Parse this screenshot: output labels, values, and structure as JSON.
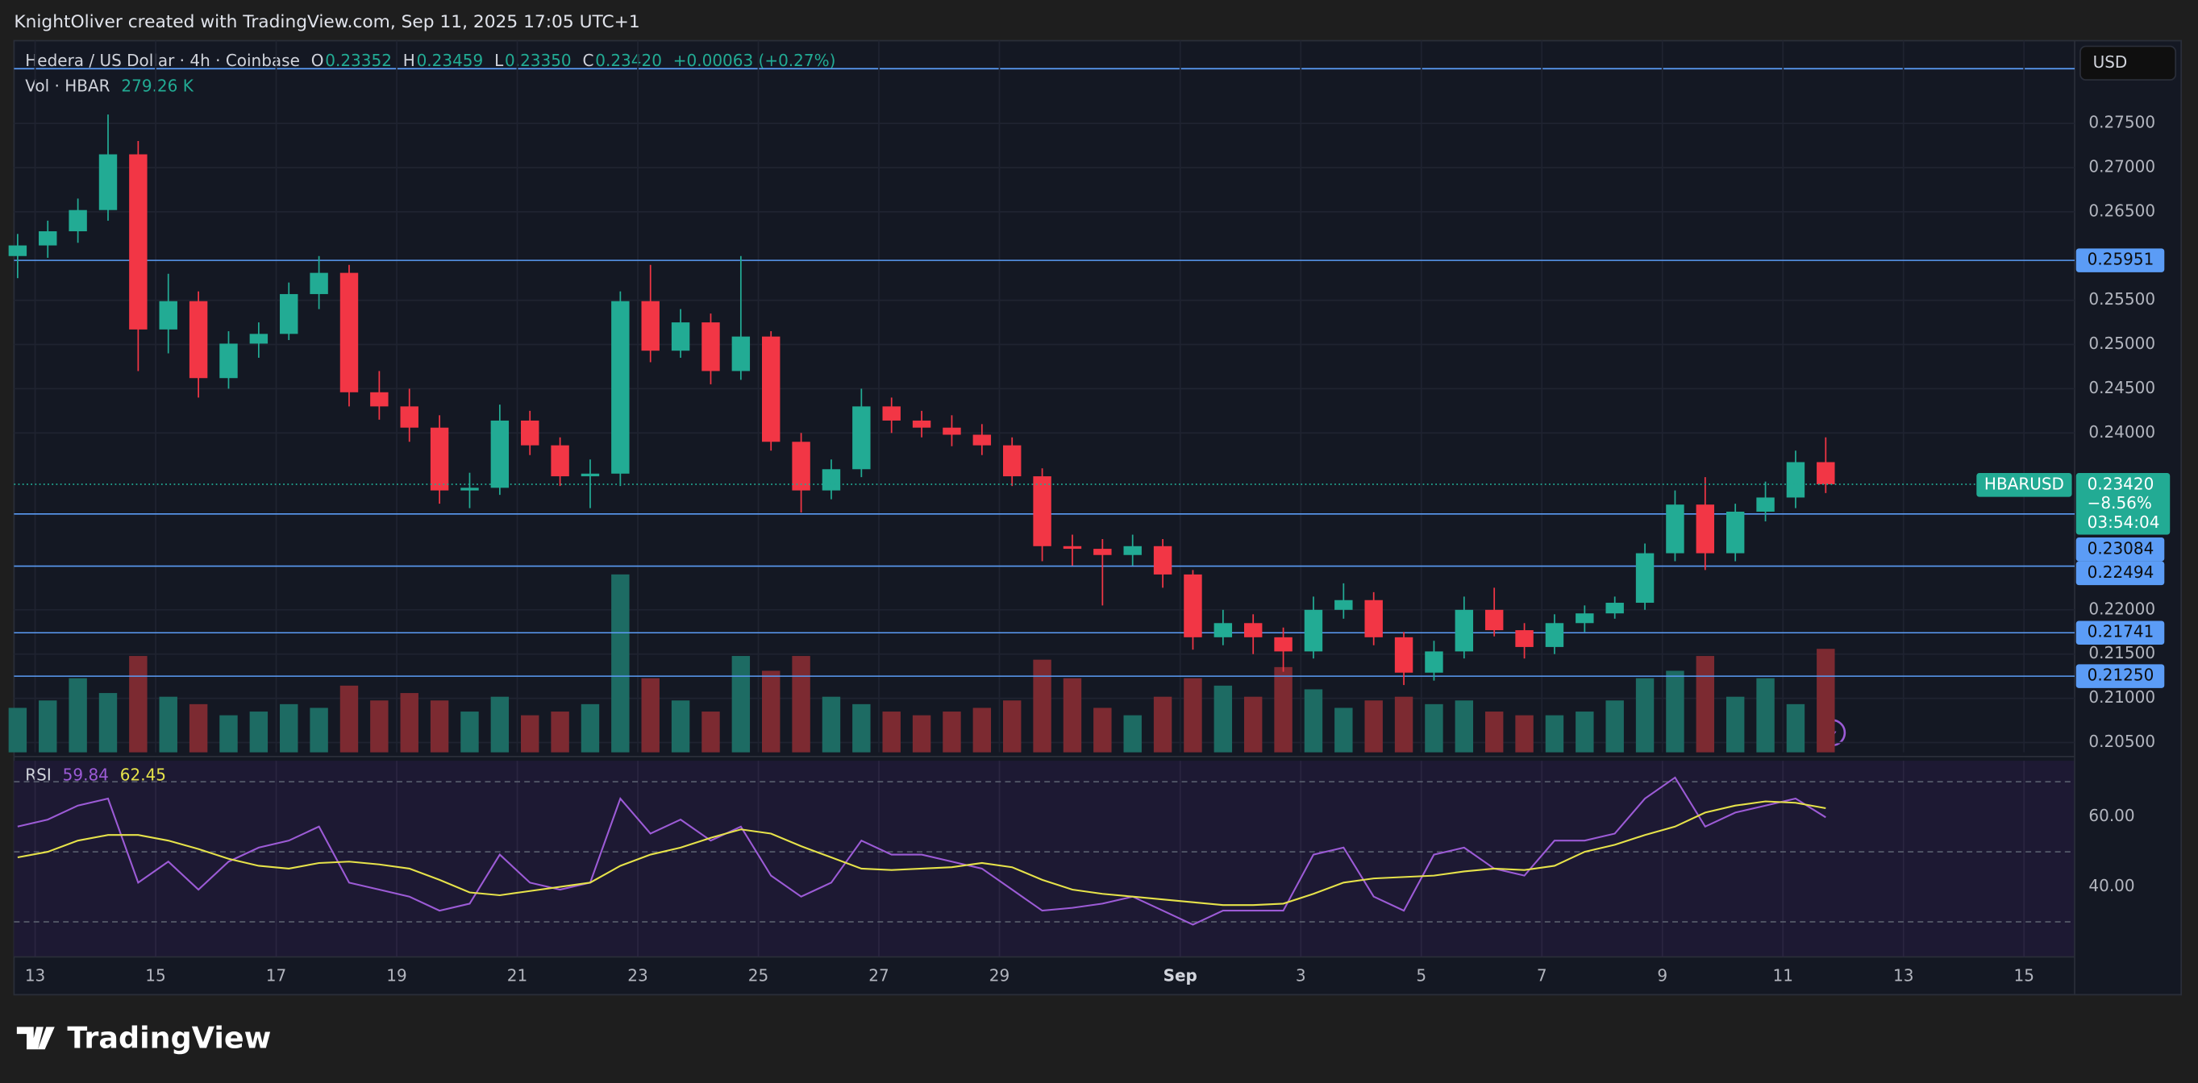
{
  "header": {
    "attribution": "KnightOliver created with TradingView.com, Sep 11, 2025 17:05 UTC+1",
    "symbol": "Hedera / US Dollar · 4h · Coinbase",
    "ohlc": [
      {
        "key": "O",
        "value": 0.23352
      },
      {
        "key": "H",
        "value": 0.23459
      },
      {
        "key": "L",
        "value": 0.2335,
        "label": "0.23350"
      },
      {
        "key": "C",
        "value": 0.2342,
        "label": "0.23420"
      }
    ],
    "change": "+0.00063 (+0.27%)",
    "currency": "USD"
  },
  "chart_data": {
    "type": "candlestick",
    "grid": true,
    "colors": {
      "up": "#22ab94",
      "down": "#f23645",
      "up_volume": "#1d6b63",
      "down_volume": "#7c2a31",
      "level": "#5b9cf6"
    },
    "x": [
      -0.29,
      0.21,
      0.71,
      1.21,
      1.71,
      2.21,
      2.71,
      3.21,
      3.71,
      4.21,
      4.71,
      5.21,
      5.71,
      6.21,
      6.71,
      7.21,
      7.71,
      8.21,
      8.71,
      9.21,
      9.71,
      10.21,
      10.71,
      11.21,
      11.71,
      12.21,
      12.71,
      13.21,
      13.71,
      14.21,
      14.71,
      15.21,
      15.71,
      16.21,
      16.71,
      17.21,
      17.71,
      18.21,
      18.71,
      19.21,
      19.71,
      20.21,
      20.71,
      21.21,
      21.71,
      22.21,
      22.71,
      23.21,
      23.71,
      24.21,
      24.71,
      25.21,
      25.71,
      26.21,
      26.71,
      27.21,
      27.71,
      28.21,
      28.71,
      29.21,
      29.71
    ],
    "open": [
      0.26,
      0.2612,
      0.2628,
      0.2652,
      0.2715,
      0.2517,
      0.2549,
      0.2462,
      0.2501,
      0.2512,
      0.2557,
      0.2581,
      0.2446,
      0.243,
      0.2406,
      0.2335,
      0.2338,
      0.2414,
      0.2386,
      0.2351,
      0.2354,
      0.2549,
      0.2493,
      0.2525,
      0.247,
      0.2509,
      0.239,
      0.2335,
      0.2359,
      0.243,
      0.2414,
      0.2406,
      0.2398,
      0.2386,
      0.2351,
      0.2272,
      0.2269,
      0.2262,
      0.2272,
      0.224,
      0.2169,
      0.2185,
      0.2169,
      0.2153,
      0.22,
      0.2211,
      0.2169,
      0.2129,
      0.2153,
      0.22,
      0.2177,
      0.2158,
      0.2185,
      0.2196,
      0.2208,
      0.2264,
      0.2319,
      0.2264,
      0.2311,
      0.2327,
      0.2367
    ],
    "high": [
      0.2625,
      0.264,
      0.2665,
      0.276,
      0.273,
      0.258,
      0.256,
      0.2515,
      0.2525,
      0.257,
      0.26,
      0.259,
      0.247,
      0.245,
      0.242,
      0.2355,
      0.2432,
      0.2425,
      0.2395,
      0.237,
      0.256,
      0.259,
      0.254,
      0.2535,
      0.26,
      0.2515,
      0.24,
      0.237,
      0.245,
      0.244,
      0.2425,
      0.242,
      0.241,
      0.2395,
      0.236,
      0.2285,
      0.228,
      0.2285,
      0.228,
      0.2245,
      0.22,
      0.2195,
      0.218,
      0.2215,
      0.223,
      0.222,
      0.2175,
      0.2165,
      0.2215,
      0.2225,
      0.2185,
      0.2195,
      0.2205,
      0.2215,
      0.2275,
      0.2335,
      0.235,
      0.232,
      0.2345,
      0.238,
      0.2395
    ],
    "low": [
      0.2575,
      0.2598,
      0.2615,
      0.264,
      0.247,
      0.249,
      0.244,
      0.245,
      0.2485,
      0.2505,
      0.254,
      0.243,
      0.2415,
      0.239,
      0.232,
      0.2315,
      0.233,
      0.2375,
      0.234,
      0.2315,
      0.234,
      0.248,
      0.2485,
      0.2455,
      0.246,
      0.238,
      0.231,
      0.2325,
      0.235,
      0.24,
      0.2395,
      0.2385,
      0.2375,
      0.234,
      0.2255,
      0.225,
      0.2205,
      0.225,
      0.2225,
      0.2155,
      0.216,
      0.215,
      0.213,
      0.2145,
      0.219,
      0.216,
      0.2115,
      0.212,
      0.2145,
      0.217,
      0.2145,
      0.215,
      0.2175,
      0.219,
      0.22,
      0.2255,
      0.2245,
      0.2255,
      0.23,
      0.2315,
      0.2332
    ],
    "close": [
      0.2612,
      0.2628,
      0.2652,
      0.2715,
      0.2517,
      0.2549,
      0.2462,
      0.2501,
      0.2512,
      0.2557,
      0.2581,
      0.2446,
      0.243,
      0.2406,
      0.2335,
      0.2338,
      0.2414,
      0.2386,
      0.2351,
      0.2354,
      0.2549,
      0.2493,
      0.2525,
      0.247,
      0.2509,
      0.239,
      0.2335,
      0.2359,
      0.243,
      0.2414,
      0.2406,
      0.2398,
      0.2386,
      0.2351,
      0.2272,
      0.2269,
      0.2262,
      0.2272,
      0.224,
      0.2169,
      0.2185,
      0.2169,
      0.2153,
      0.22,
      0.2211,
      0.2169,
      0.2129,
      0.2153,
      0.22,
      0.2177,
      0.2158,
      0.2185,
      0.2196,
      0.2208,
      0.2264,
      0.2319,
      0.2264,
      0.2311,
      0.2327,
      0.2367,
      0.2342
    ],
    "xlim": [
      -0.35,
      33.84
    ],
    "ylim": [
      0.20389,
      0.28435
    ],
    "xticks": [
      {
        "value": 0,
        "label": "13"
      },
      {
        "value": 2,
        "label": "15"
      },
      {
        "value": 4,
        "label": "17"
      },
      {
        "value": 6,
        "label": "19"
      },
      {
        "value": 8,
        "label": "21"
      },
      {
        "value": 10,
        "label": "23"
      },
      {
        "value": 12,
        "label": "25"
      },
      {
        "value": 14,
        "label": "27"
      },
      {
        "value": 16,
        "label": "29"
      },
      {
        "value": 19,
        "label": "Sep"
      },
      {
        "value": 21,
        "label": "3"
      },
      {
        "value": 23,
        "label": "5"
      },
      {
        "value": 25,
        "label": "7"
      },
      {
        "value": 27,
        "label": "9"
      },
      {
        "value": 29,
        "label": "11"
      },
      {
        "value": 31,
        "label": "13"
      },
      {
        "value": 33,
        "label": "15"
      }
    ],
    "yticks": [
      {
        "value": 0.275,
        "label": "0.27500"
      },
      {
        "value": 0.27,
        "label": "0.27000"
      },
      {
        "value": 0.265,
        "label": "0.26500"
      },
      {
        "value": 0.255,
        "label": "0.25500"
      },
      {
        "value": 0.25,
        "label": "0.25000"
      },
      {
        "value": 0.245,
        "label": "0.24500"
      },
      {
        "value": 0.24,
        "label": "0.24000"
      },
      {
        "value": 0.22,
        "label": "0.22000"
      },
      {
        "value": 0.215,
        "label": "0.21500"
      },
      {
        "value": 0.21,
        "label": "0.21000"
      },
      {
        "value": 0.205,
        "label": "0.20500"
      }
    ],
    "levels": [
      {
        "value": 0.25951,
        "label": "0.25951"
      },
      {
        "value": 0.23084,
        "label": "0.23084"
      },
      {
        "value": 0.22494,
        "label": "0.22494"
      },
      {
        "value": 0.21741,
        "label": "0.21741"
      },
      {
        "value": 0.2125,
        "label": "0.21250"
      }
    ],
    "last_price": {
      "name": "HBARUSD",
      "value": 0.2342,
      "label": "0.23420",
      "change": "−8.56%",
      "countdown": "03:54:04"
    },
    "volume": {
      "name": "Vol · HBAR",
      "last_label": "279.26 K",
      "ylim": [
        0,
        1920
      ],
      "values": [
        120,
        140,
        200,
        160,
        260,
        150,
        130,
        100,
        110,
        130,
        120,
        180,
        140,
        160,
        140,
        110,
        150,
        100,
        110,
        130,
        480,
        200,
        140,
        110,
        260,
        220,
        260,
        150,
        130,
        110,
        100,
        110,
        120,
        140,
        250,
        200,
        120,
        100,
        150,
        200,
        180,
        150,
        230,
        170,
        120,
        140,
        150,
        130,
        140,
        110,
        100,
        100,
        110,
        140,
        200,
        220,
        260,
        150,
        200,
        130,
        279.26
      ]
    },
    "rsi": {
      "name": "RSI",
      "color": "#9c5bd6",
      "ma_color": "#e6e24a",
      "ylim": [
        20,
        76
      ],
      "bands": [
        70,
        50,
        30
      ],
      "yticks": [
        {
          "value": 60,
          "label": "60.00"
        },
        {
          "value": 40,
          "label": "40.00"
        }
      ],
      "values": [
        57.2,
        59.2,
        63.2,
        65.2,
        41.2,
        47.2,
        39.2,
        47.2,
        51.2,
        53.2,
        57.2,
        41.2,
        39.2,
        37.2,
        33.2,
        35.2,
        49.2,
        41.2,
        39.2,
        41.2,
        65.2,
        55.2,
        59.2,
        53.2,
        57.2,
        43.2,
        37.2,
        41.2,
        53.2,
        49.2,
        49.2,
        47.2,
        45.2,
        39.2,
        33.2,
        34,
        35.2,
        37.2,
        33.2,
        29.2,
        33.2,
        33.2,
        33.2,
        49.2,
        51.2,
        37.2,
        33.2,
        49.2,
        51.2,
        45.2,
        43.2,
        53.2,
        53.2,
        55.2,
        65.2,
        71.2,
        57.2,
        61.2,
        63.2,
        65.2,
        59.84
      ],
      "ma": [
        48.4,
        50,
        53.2,
        54.8,
        54.8,
        53.2,
        50.8,
        48,
        46,
        45.2,
        46.8,
        47.2,
        46.4,
        45.2,
        42,
        38.4,
        37.6,
        38.8,
        40,
        41.2,
        46,
        49.2,
        51.2,
        54,
        56.4,
        55.2,
        51.6,
        48.4,
        45.2,
        44.8,
        45.2,
        45.6,
        46.8,
        45.6,
        42,
        39.2,
        38,
        37.2,
        36.4,
        35.6,
        34.8,
        34.8,
        35.2,
        38,
        41.2,
        42.4,
        42.8,
        43.2,
        44.4,
        45.2,
        44.8,
        46,
        50,
        52,
        54.8,
        57.2,
        61.2,
        63.2,
        64.4,
        64,
        62.45
      ]
    }
  },
  "footer": {
    "brand": "TradingView"
  }
}
